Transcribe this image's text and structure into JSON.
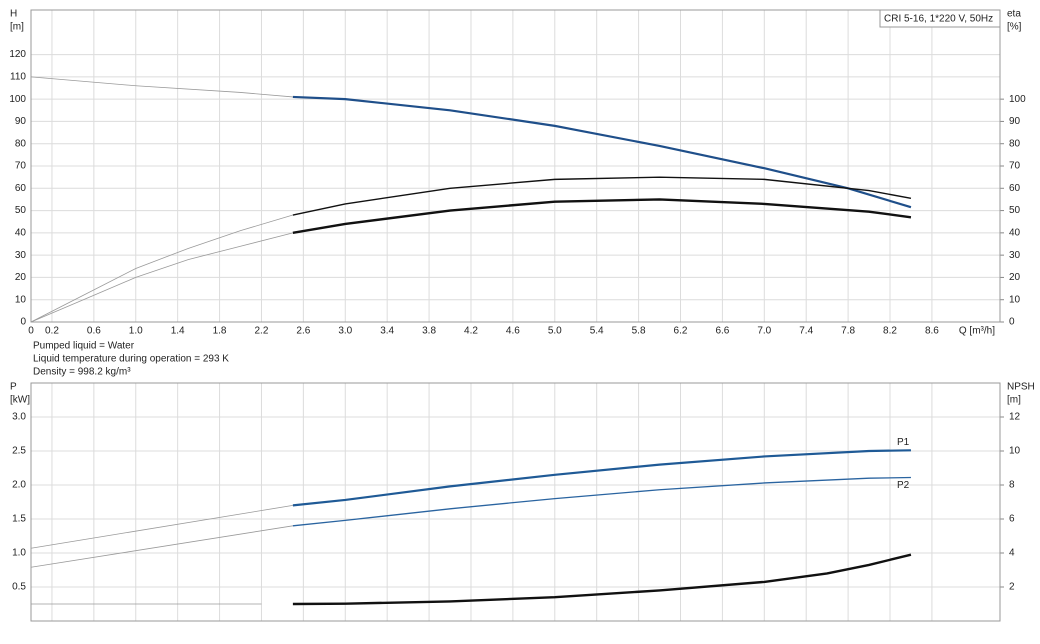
{
  "chart_data": [
    {
      "type": "line",
      "ylabel": [
        "H",
        "[m]"
      ],
      "y2label": [
        "eta",
        "[%]"
      ],
      "xlabel": "Q [m³/h]",
      "annotation": "CRI 5-16, 1*220 V, 50Hz",
      "notes": [
        "Pumped liquid = Water",
        "Liquid temperature during operation = 293 K",
        "Density = 998.2 kg/m³"
      ],
      "xlim": [
        0,
        9.25
      ],
      "xticks": [
        0,
        0.2,
        0.6,
        {
          "value": 1,
          "label": "1.0"
        },
        1.4,
        1.8,
        2.2,
        2.6,
        {
          "value": 3,
          "label": "3.0"
        },
        3.4,
        3.8,
        4.2,
        4.6,
        {
          "value": 5,
          "label": "5.0"
        },
        5.4,
        5.8,
        6.2,
        6.6,
        {
          "value": 7,
          "label": "7.0"
        },
        7.4,
        7.8,
        8.2,
        8.6
      ],
      "ylim": [
        0,
        140
      ],
      "yticks": [
        0,
        10,
        20,
        30,
        40,
        50,
        60,
        70,
        80,
        90,
        100,
        110,
        120
      ],
      "y2lim": [
        0,
        140
      ],
      "y2ticks": [
        0,
        10,
        20,
        30,
        40,
        50,
        60,
        70,
        80,
        90,
        100
      ],
      "grid": true,
      "series": [
        {
          "color": "#9a9a9a",
          "width": 0.8,
          "x": [
            0,
            1,
            2,
            2.5
          ],
          "values": [
            110,
            106,
            103,
            101
          ]
        },
        {
          "color": "#1f4f8a",
          "width": 2.2,
          "x": [
            2.5,
            3,
            4,
            5,
            6,
            7,
            7.8,
            8.4
          ],
          "values": [
            101,
            100,
            95,
            88,
            79,
            69,
            60,
            51.5
          ]
        },
        {
          "color": "#9a9a9a",
          "width": 0.8,
          "axis": "y2",
          "x": [
            0,
            0.5,
            1,
            1.5,
            2,
            2.5
          ],
          "values": [
            0,
            12,
            24,
            33,
            41,
            48
          ]
        },
        {
          "color": "#111111",
          "width": 1.4,
          "axis": "y2",
          "x": [
            2.5,
            3,
            4,
            5,
            6,
            7,
            8,
            8.4
          ],
          "values": [
            48,
            53,
            60,
            64,
            65,
            64,
            59,
            55.5
          ]
        },
        {
          "color": "#9a9a9a",
          "width": 0.8,
          "axis": "y2",
          "x": [
            0,
            0.5,
            1,
            1.5,
            2,
            2.5
          ],
          "values": [
            0,
            10,
            20,
            28,
            34,
            40
          ]
        },
        {
          "color": "#111111",
          "width": 2.4,
          "axis": "y2",
          "x": [
            2.5,
            3,
            4,
            5,
            6,
            7,
            8,
            8.4
          ],
          "values": [
            40,
            44,
            50,
            54,
            55,
            53,
            49.5,
            47
          ]
        }
      ]
    },
    {
      "type": "line",
      "ylabel": [
        "P",
        "[kW]"
      ],
      "y2label": [
        "NPSH",
        "[m]"
      ],
      "xlim": [
        0,
        9.25
      ],
      "ylim": [
        0,
        3.5
      ],
      "yticks": [
        0.5,
        {
          "value": 1,
          "label": "1.0"
        },
        1.5,
        {
          "value": 2,
          "label": "2.0"
        },
        2.5,
        {
          "value": 3,
          "label": "3.0"
        }
      ],
      "y2lim": [
        0,
        14
      ],
      "y2ticks": [
        2,
        4,
        6,
        8,
        10,
        12
      ],
      "grid": true,
      "series": [
        {
          "color": "#9a9a9a",
          "width": 0.8,
          "x": [
            0,
            2.5
          ],
          "values": [
            1.07,
            1.7
          ]
        },
        {
          "name": "P1",
          "color": "#1f5a96",
          "width": 2.2,
          "x": [
            2.5,
            3,
            4,
            5,
            6,
            7,
            8,
            8.4
          ],
          "values": [
            1.7,
            1.78,
            1.98,
            2.15,
            2.3,
            2.42,
            2.5,
            2.51
          ]
        },
        {
          "color": "#9a9a9a",
          "width": 0.8,
          "x": [
            0,
            2.5
          ],
          "values": [
            0.79,
            1.4
          ]
        },
        {
          "name": "P2",
          "color": "#2a64a0",
          "width": 1.3,
          "x": [
            2.5,
            3,
            4,
            5,
            6,
            7,
            8,
            8.4
          ],
          "values": [
            1.4,
            1.48,
            1.65,
            1.8,
            1.93,
            2.03,
            2.1,
            2.11
          ]
        },
        {
          "color": "#9a9a9a",
          "width": 0.8,
          "axis": "y2",
          "x": [
            0,
            2.2
          ],
          "values": [
            1,
            1
          ]
        },
        {
          "color": "#111111",
          "width": 2.4,
          "axis": "y2",
          "x": [
            2.5,
            3,
            4,
            5,
            6,
            7,
            7.6,
            8,
            8.4
          ],
          "values": [
            1,
            1.02,
            1.15,
            1.4,
            1.8,
            2.3,
            2.8,
            3.3,
            3.9
          ]
        }
      ]
    }
  ]
}
